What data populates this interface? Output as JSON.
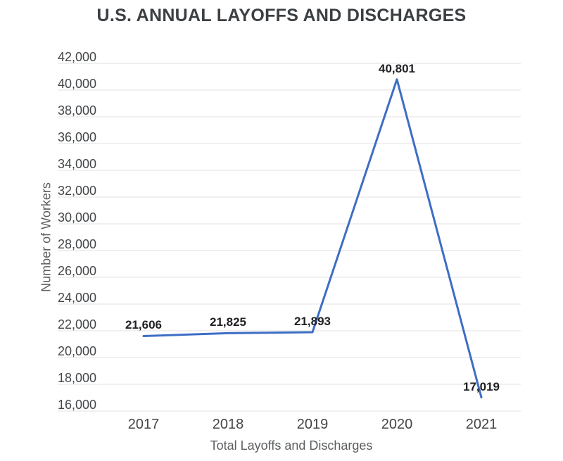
{
  "chart_data": {
    "type": "line",
    "title": "U.S. ANNUAL LAYOFFS AND DISCHARGES",
    "xlabel": "Total Layoffs and Discharges",
    "ylabel": "Number of Workers",
    "categories": [
      "2017",
      "2018",
      "2019",
      "2020",
      "2021"
    ],
    "series": [
      {
        "name": "Total Layoffs and Discharges",
        "values": [
          21606,
          21825,
          21893,
          40801,
          17019
        ]
      }
    ],
    "data_labels": [
      "21,606",
      "21,825",
      "21,893",
      "40,801",
      "17,019"
    ],
    "y_tick_labels": [
      "42,000",
      "40,000",
      "38,000",
      "36,000",
      "34,000",
      "32,000",
      "30,000",
      "28,000",
      "26,000",
      "24,000",
      "22,000",
      "20,000",
      "18,000",
      "16,000"
    ],
    "ylim": [
      16000,
      42000
    ],
    "y_tick_step": 2000,
    "grid": true,
    "legend_position": "none",
    "markers": "none",
    "colors": {
      "line": "#3d6ec5",
      "grid": "#e2e2e2",
      "title": "#3c4043",
      "tick_label": "#434649",
      "axis_title": "#5b5e61",
      "data_label": "#202124",
      "background": "#ffffff"
    }
  }
}
